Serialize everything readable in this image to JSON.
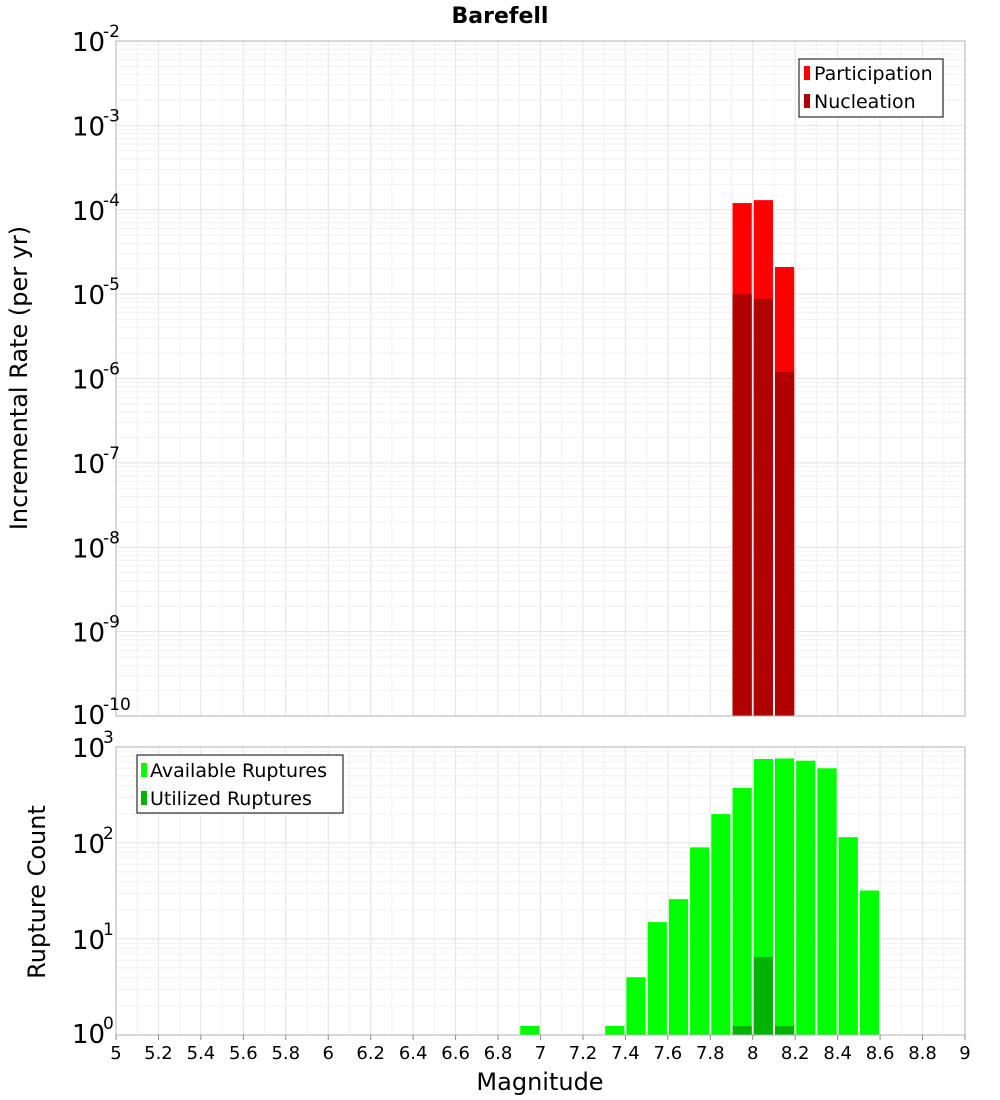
{
  "title": "Barefell",
  "colors": {
    "participation": "#ff0000",
    "nucleation": "#b00000",
    "available": "#00ff00",
    "utilized": "#00b300"
  },
  "chart_data": [
    {
      "type": "bar",
      "id": "rates",
      "title": "Barefell",
      "ylabel": "Incremental Rate (per yr)",
      "xlabel": "",
      "yscale": "log",
      "xlim": [
        5,
        9
      ],
      "ylim_exp": [
        -10,
        -2
      ],
      "legend_position": "top-right",
      "bin_width": 0.1,
      "series": [
        {
          "name": "Participation",
          "x": [
            7.95,
            8.05,
            8.15
          ],
          "values": [
            0.00012,
            0.00013,
            2.1e-05
          ]
        },
        {
          "name": "Nucleation",
          "x": [
            7.95,
            8.05,
            8.15
          ],
          "values": [
            1e-05,
            8.8e-06,
            1.2e-06
          ]
        }
      ]
    },
    {
      "type": "bar",
      "id": "counts",
      "ylabel": "Rupture Count",
      "xlabel": "Magnitude",
      "yscale": "log",
      "xlim": [
        5,
        9
      ],
      "ylim_exp": [
        0,
        3
      ],
      "legend_position": "top-left",
      "bin_width": 0.1,
      "series": [
        {
          "name": "Available Ruptures",
          "x": [
            6.95,
            7.35,
            7.45,
            7.55,
            7.65,
            7.75,
            7.85,
            7.95,
            8.05,
            8.15,
            8.25,
            8.35,
            8.45,
            8.55
          ],
          "values": [
            1,
            1,
            4,
            15,
            26,
            90,
            200,
            375,
            750,
            760,
            720,
            600,
            115,
            32
          ]
        },
        {
          "name": "Utilized Ruptures",
          "x": [
            7.95,
            8.05,
            8.15
          ],
          "values": [
            1,
            6.5,
            1
          ]
        }
      ]
    }
  ],
  "x_ticks": [
    "5",
    "5.2",
    "5.4",
    "5.6",
    "5.8",
    "6",
    "6.2",
    "6.4",
    "6.6",
    "6.8",
    "7",
    "7.2",
    "7.4",
    "7.6",
    "7.8",
    "8",
    "8.2",
    "8.4",
    "8.6",
    "8.8",
    "9"
  ],
  "top_y_ticks": [
    {
      "base": "10",
      "exp": "-10"
    },
    {
      "base": "10",
      "exp": "-9"
    },
    {
      "base": "10",
      "exp": "-8"
    },
    {
      "base": "10",
      "exp": "-7"
    },
    {
      "base": "10",
      "exp": "-6"
    },
    {
      "base": "10",
      "exp": "-5"
    },
    {
      "base": "10",
      "exp": "-4"
    },
    {
      "base": "10",
      "exp": "-3"
    },
    {
      "base": "10",
      "exp": "-2"
    }
  ],
  "bottom_y_ticks": [
    {
      "base": "10",
      "exp": "0"
    },
    {
      "base": "10",
      "exp": "1"
    },
    {
      "base": "10",
      "exp": "2"
    },
    {
      "base": "10",
      "exp": "3"
    }
  ]
}
